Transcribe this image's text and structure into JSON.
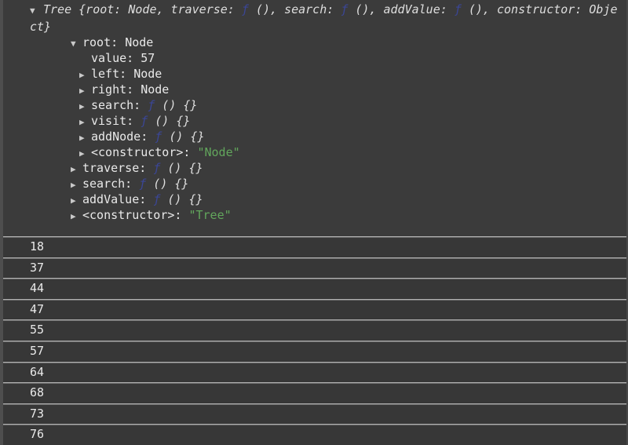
{
  "colors": {
    "background": "#3b3b3b",
    "text": "#e9e9e9",
    "function_symbol": "#3b4696",
    "string_value": "#62a65c",
    "separator": "#b2b2b2"
  },
  "console": {
    "object_entry": {
      "expander_expanded": "▼",
      "expander_collapsed": "▶",
      "preview_line1": [
        {
          "t": "Tree {root: Node, traverse: ",
          "c": "preview"
        },
        {
          "t": "ƒ",
          "c": "fn"
        },
        {
          "t": " (), search: ",
          "c": "preview"
        },
        {
          "t": "ƒ",
          "c": "fn"
        },
        {
          "t": " (), addValue: ",
          "c": "preview"
        },
        {
          "t": "ƒ",
          "c": "fn"
        },
        {
          "t": " (), constructor: Obje",
          "c": "preview"
        }
      ],
      "preview_line2": [
        {
          "t": "ct}",
          "c": "preview"
        }
      ],
      "tree_rows": [
        {
          "indent": 2,
          "arrow": "expanded",
          "name": "root",
          "value": [
            {
              "t": "Node",
              "c": "plain"
            }
          ]
        },
        {
          "indent": 3,
          "arrow": null,
          "name": "value",
          "value": [
            {
              "t": "57",
              "c": "plain"
            }
          ]
        },
        {
          "indent": 3,
          "arrow": "collapsed",
          "name": "left",
          "value": [
            {
              "t": "Node",
              "c": "plain"
            }
          ]
        },
        {
          "indent": 3,
          "arrow": "collapsed",
          "name": "right",
          "value": [
            {
              "t": "Node",
              "c": "plain"
            }
          ]
        },
        {
          "indent": 3,
          "arrow": "collapsed",
          "name": "search",
          "value": [
            {
              "t": "ƒ",
              "c": "fn"
            },
            {
              "t": " () {}",
              "c": "fnbody"
            }
          ]
        },
        {
          "indent": 3,
          "arrow": "collapsed",
          "name": "visit",
          "value": [
            {
              "t": "ƒ",
              "c": "fn"
            },
            {
              "t": " () {}",
              "c": "fnbody"
            }
          ]
        },
        {
          "indent": 3,
          "arrow": "collapsed",
          "name": "addNode",
          "value": [
            {
              "t": "ƒ",
              "c": "fn"
            },
            {
              "t": " () {}",
              "c": "fnbody"
            }
          ]
        },
        {
          "indent": 3,
          "arrow": "collapsed",
          "name": "<constructor>",
          "value": [
            {
              "t": "\"Node\"",
              "c": "string"
            }
          ]
        },
        {
          "indent": 2,
          "arrow": "collapsed",
          "name": "traverse",
          "value": [
            {
              "t": "ƒ",
              "c": "fn"
            },
            {
              "t": " () {}",
              "c": "fnbody"
            }
          ]
        },
        {
          "indent": 2,
          "arrow": "collapsed",
          "name": "search",
          "value": [
            {
              "t": "ƒ",
              "c": "fn"
            },
            {
              "t": " () {}",
              "c": "fnbody"
            }
          ]
        },
        {
          "indent": 2,
          "arrow": "collapsed",
          "name": "addValue",
          "value": [
            {
              "t": "ƒ",
              "c": "fn"
            },
            {
              "t": " () {}",
              "c": "fnbody"
            }
          ]
        },
        {
          "indent": 2,
          "arrow": "collapsed",
          "name": "<constructor>",
          "value": [
            {
              "t": "\"Tree\"",
              "c": "string"
            }
          ]
        }
      ]
    },
    "log_entries": [
      "18",
      "37",
      "44",
      "47",
      "55",
      "57",
      "64",
      "68",
      "73",
      "76"
    ]
  }
}
